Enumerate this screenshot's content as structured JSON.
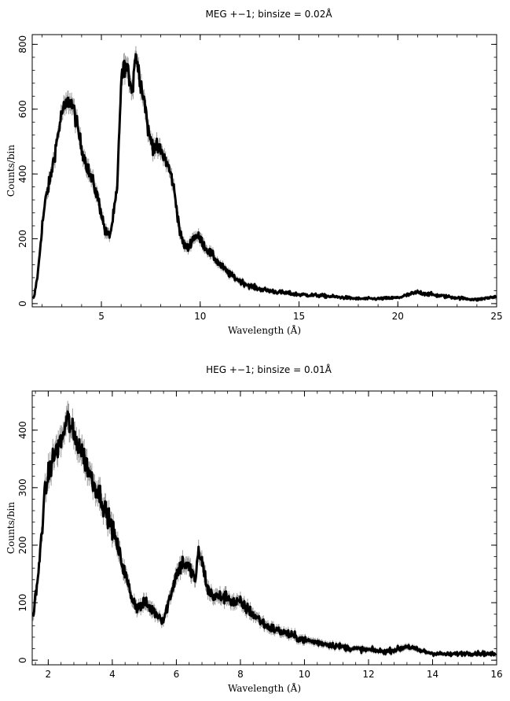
{
  "chart_data": [
    {
      "type": "line",
      "title": "MEG +−1; binsize = 0.02Å",
      "xlabel": "Wavelength (Å)",
      "ylabel": "Counts/bin",
      "xlim": [
        1.5,
        25
      ],
      "ylim": [
        -10,
        830
      ],
      "xticks": [
        5,
        10,
        15,
        20,
        25
      ],
      "yticks": [
        0,
        200,
        400,
        600,
        800
      ],
      "xtick_labels": [
        "5",
        "10",
        "15",
        "20",
        "25"
      ],
      "ytick_labels": [
        "0",
        "200",
        "400",
        "600",
        "800"
      ],
      "grid": false,
      "legend": "none",
      "series": [
        {
          "x": [
            1.5,
            1.6,
            1.8,
            2.0,
            2.2,
            2.4,
            2.6,
            2.8,
            3.0,
            3.2,
            3.4,
            3.6,
            3.8,
            4.0,
            4.2,
            4.4,
            4.6,
            4.8,
            5.0,
            5.2,
            5.4,
            5.5,
            5.6,
            5.8,
            6.0,
            6.2,
            6.4,
            6.6,
            6.7,
            6.8,
            7.0,
            7.2,
            7.4,
            7.6,
            7.8,
            8.0,
            8.2,
            8.4,
            8.6,
            8.8,
            9.0,
            9.2,
            9.4,
            9.6,
            9.8,
            10.0,
            10.3,
            10.6,
            11.0,
            11.5,
            12.0,
            12.5,
            13.0,
            14.0,
            15.0,
            16.0,
            17.0,
            18.0,
            19.0,
            20.0,
            21.0,
            22.0,
            23.0,
            24.0,
            25.0
          ],
          "values": [
            10,
            20,
            100,
            240,
            330,
            380,
            450,
            520,
            590,
            610,
            630,
            600,
            540,
            480,
            440,
            400,
            370,
            330,
            280,
            220,
            210,
            230,
            270,
            350,
            690,
            740,
            700,
            660,
            780,
            750,
            680,
            620,
            520,
            490,
            480,
            470,
            450,
            420,
            380,
            300,
            210,
            180,
            170,
            200,
            210,
            200,
            170,
            150,
            120,
            90,
            70,
            55,
            45,
            35,
            28,
            25,
            20,
            15,
            15,
            18,
            35,
            25,
            18,
            12,
            22
          ]
        }
      ]
    },
    {
      "type": "line",
      "title": "HEG +−1; binsize = 0.01Å",
      "xlabel": "Wavelength (Å)",
      "ylabel": "Counts/bin",
      "xlim": [
        1.5,
        16
      ],
      "ylim": [
        -8,
        468
      ],
      "xticks": [
        2,
        4,
        6,
        8,
        10,
        12,
        14,
        16
      ],
      "yticks": [
        0,
        100,
        200,
        300,
        400
      ],
      "xtick_labels": [
        "2",
        "4",
        "6",
        "8",
        "10",
        "12",
        "14",
        "16"
      ],
      "ytick_labels": [
        "0",
        "100",
        "200",
        "300",
        "400"
      ],
      "grid": false,
      "legend": "none",
      "series": [
        {
          "x": [
            1.5,
            1.6,
            1.7,
            1.8,
            1.9,
            2.0,
            2.2,
            2.4,
            2.6,
            2.8,
            3.0,
            3.2,
            3.4,
            3.6,
            3.8,
            4.0,
            4.2,
            4.4,
            4.6,
            4.8,
            5.0,
            5.2,
            5.4,
            5.6,
            5.8,
            6.0,
            6.2,
            6.4,
            6.6,
            6.7,
            6.8,
            7.0,
            7.2,
            7.4,
            7.6,
            7.8,
            8.0,
            8.2,
            8.4,
            8.6,
            8.8,
            9.0,
            9.5,
            10.0,
            10.5,
            11.0,
            11.5,
            12.0,
            12.5,
            13.0,
            13.2,
            13.5,
            14.0,
            14.5,
            15.0,
            15.5,
            16.0
          ],
          "values": [
            60,
            110,
            150,
            230,
            290,
            320,
            360,
            380,
            420,
            390,
            370,
            340,
            310,
            290,
            260,
            230,
            190,
            150,
            110,
            90,
            100,
            90,
            80,
            70,
            110,
            150,
            170,
            160,
            140,
            190,
            170,
            120,
            110,
            110,
            110,
            100,
            100,
            90,
            80,
            70,
            60,
            55,
            45,
            35,
            30,
            25,
            20,
            18,
            15,
            20,
            25,
            18,
            12,
            10,
            12,
            12,
            10
          ]
        }
      ]
    }
  ]
}
